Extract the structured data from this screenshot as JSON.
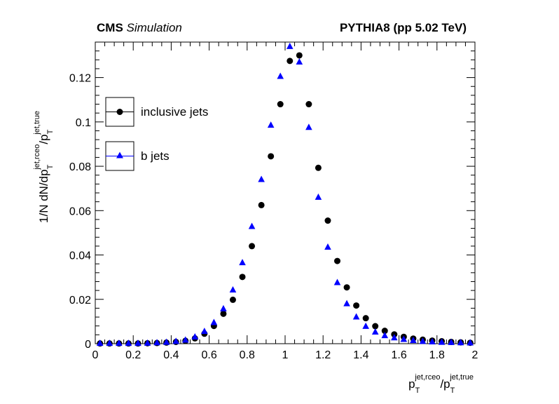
{
  "header": {
    "experiment": "CMS",
    "status": "Simulation",
    "generator": "PYTHIA8 (pp 5.02 TeV)"
  },
  "colors": {
    "inclusive": "#000000",
    "bjets": "#0000ff"
  },
  "chart_data": {
    "type": "scatter",
    "xaxis": {
      "label_main": "p",
      "label_sub": "T",
      "label_sup": "jet,rceo",
      "label_sep": "/p",
      "label_sub2": "T",
      "label_sup2": "jet,true",
      "range": [
        0,
        2
      ],
      "ticks": [
        "0",
        "0.2",
        "0.4",
        "0.6",
        "0.8",
        "1",
        "1.2",
        "1.4",
        "1.6",
        "1.8",
        "2"
      ]
    },
    "yaxis": {
      "label_main": "1/N dN/dp",
      "label_sub": "T",
      "label_sup": "jet,rceo",
      "label_sep": "/p",
      "label_sub2": "T",
      "label_sup2": "jet,true",
      "range": [
        0,
        0.136
      ],
      "ticks": [
        "0",
        "0.02",
        "0.04",
        "0.06",
        "0.08",
        "0.1",
        "0.12"
      ]
    },
    "legend": {
      "position": "upper-left",
      "entries": [
        "inclusive jets",
        "b jets"
      ]
    },
    "x": [
      0.025,
      0.075,
      0.125,
      0.175,
      0.225,
      0.275,
      0.325,
      0.375,
      0.425,
      0.475,
      0.525,
      0.575,
      0.625,
      0.675,
      0.725,
      0.775,
      0.825,
      0.875,
      0.925,
      0.975,
      1.025,
      1.075,
      1.125,
      1.175,
      1.225,
      1.275,
      1.325,
      1.375,
      1.425,
      1.475,
      1.525,
      1.575,
      1.625,
      1.675,
      1.725,
      1.775,
      1.825,
      1.875,
      1.925,
      1.975
    ],
    "series": [
      {
        "name": "inclusive jets",
        "marker": "circle",
        "values": [
          0.0001,
          0.0001,
          0.0001,
          0.0001,
          0.0001,
          0.0002,
          0.0003,
          0.0005,
          0.0008,
          0.0013,
          0.0024,
          0.0045,
          0.008,
          0.0135,
          0.0198,
          0.0301,
          0.044,
          0.0625,
          0.0845,
          0.108,
          0.1275,
          0.13,
          0.108,
          0.0793,
          0.0555,
          0.0373,
          0.0254,
          0.0172,
          0.0115,
          0.0079,
          0.0058,
          0.0042,
          0.0031,
          0.0023,
          0.0018,
          0.0014,
          0.0011,
          0.0008,
          0.0006,
          0.0004
        ]
      },
      {
        "name": "b jets",
        "marker": "triangle",
        "values": [
          0.0001,
          0.0001,
          0.0001,
          0.0001,
          0.0001,
          0.0002,
          0.0004,
          0.0006,
          0.001,
          0.0016,
          0.003,
          0.0055,
          0.0095,
          0.0157,
          0.0242,
          0.0365,
          0.0528,
          0.074,
          0.0985,
          0.1205,
          0.134,
          0.127,
          0.0975,
          0.066,
          0.0435,
          0.0275,
          0.018,
          0.012,
          0.0078,
          0.0052,
          0.0036,
          0.0026,
          0.0019,
          0.0014,
          0.001,
          0.0008,
          0.0006,
          0.0005,
          0.0004,
          0.0003
        ]
      }
    ]
  }
}
